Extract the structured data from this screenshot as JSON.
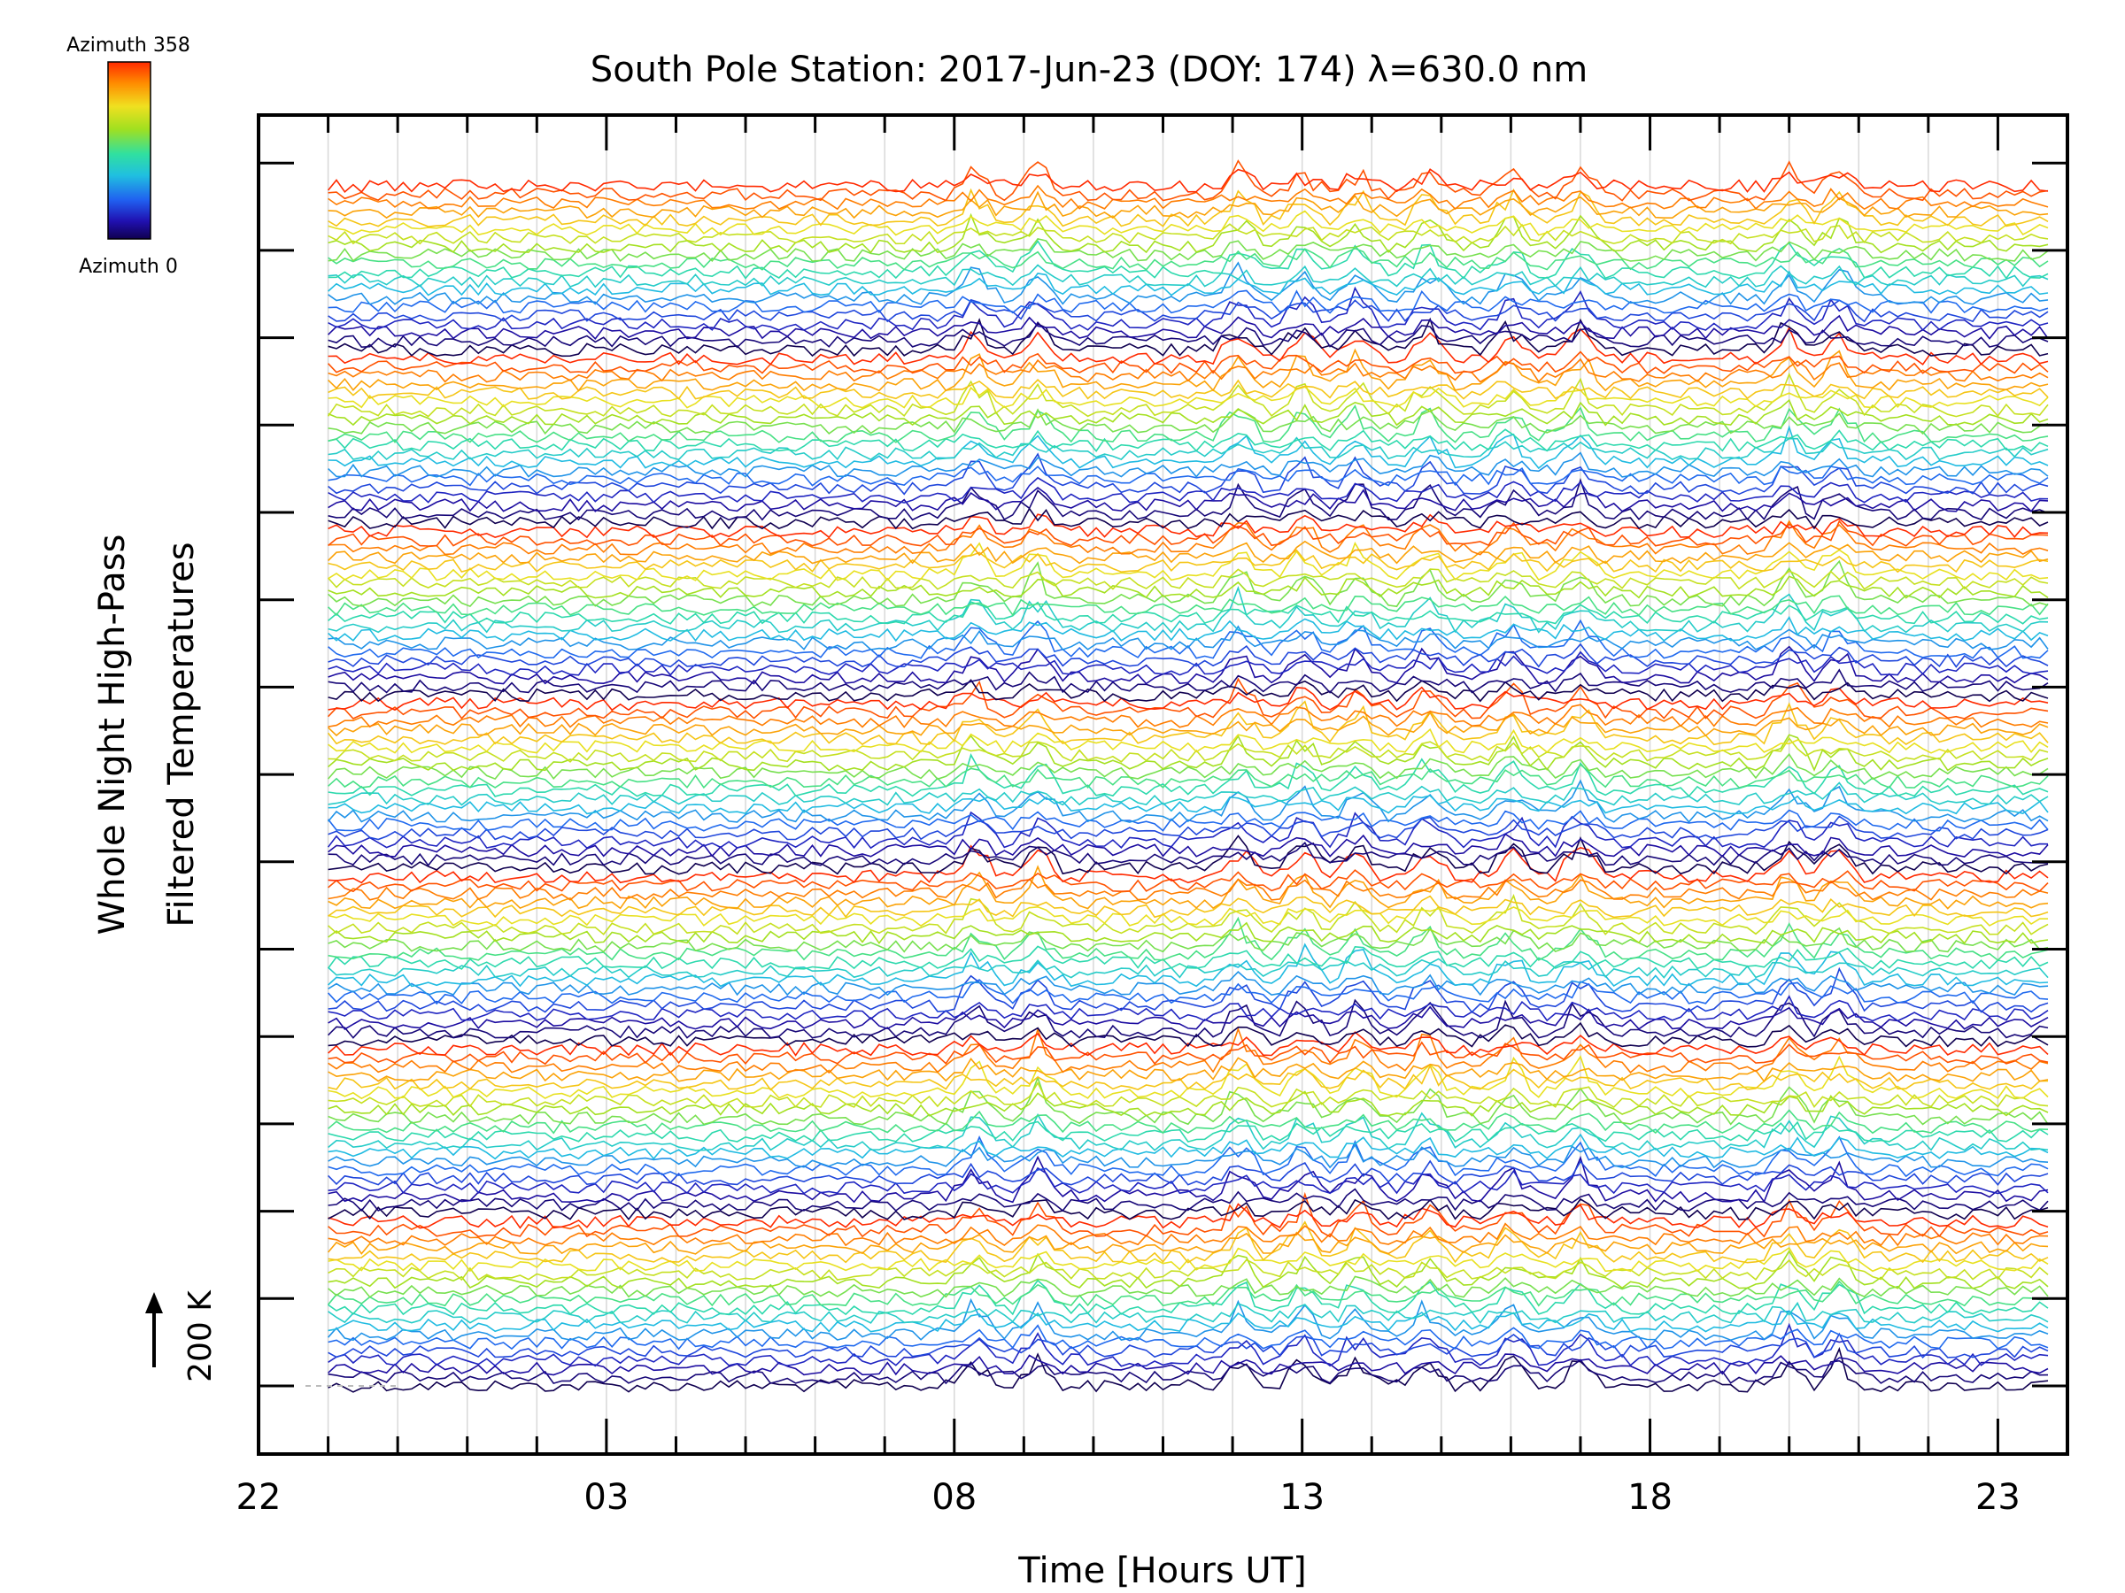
{
  "chart_data": {
    "type": "line",
    "title": "South Pole Station: 2017-Jun-23 (DOY: 174) λ=630.0 nm",
    "xlabel": "Time [Hours UT]",
    "ylabel_line1": "Whole Night High-Pass",
    "ylabel_line2": "Filtered Temperatures",
    "x_tick_labels": [
      "22",
      "03",
      "08",
      "13",
      "18",
      "23"
    ],
    "x_tick_values": [
      22,
      27,
      32,
      37,
      42,
      47
    ],
    "xlim": [
      22,
      48
    ],
    "data_start": 23.0,
    "data_end": 47.8,
    "scale_label": "200 K",
    "baseline_value": 200,
    "colorbar": {
      "top_label": "Azimuth 358",
      "bottom_label": "Azimuth 0",
      "colors": [
        "#ff2a00",
        "#ff8c00",
        "#f0e020",
        "#a0e020",
        "#30e0a0",
        "#20c0e0",
        "#2060f0",
        "#2010b0",
        "#100050"
      ]
    },
    "groups": 7,
    "traces_per_group": 20,
    "event_times": [
      32.3,
      33.2,
      36.1,
      37.0,
      37.8,
      38.8,
      40.0,
      41.0,
      44.0,
      44.7
    ],
    "series": []
  }
}
